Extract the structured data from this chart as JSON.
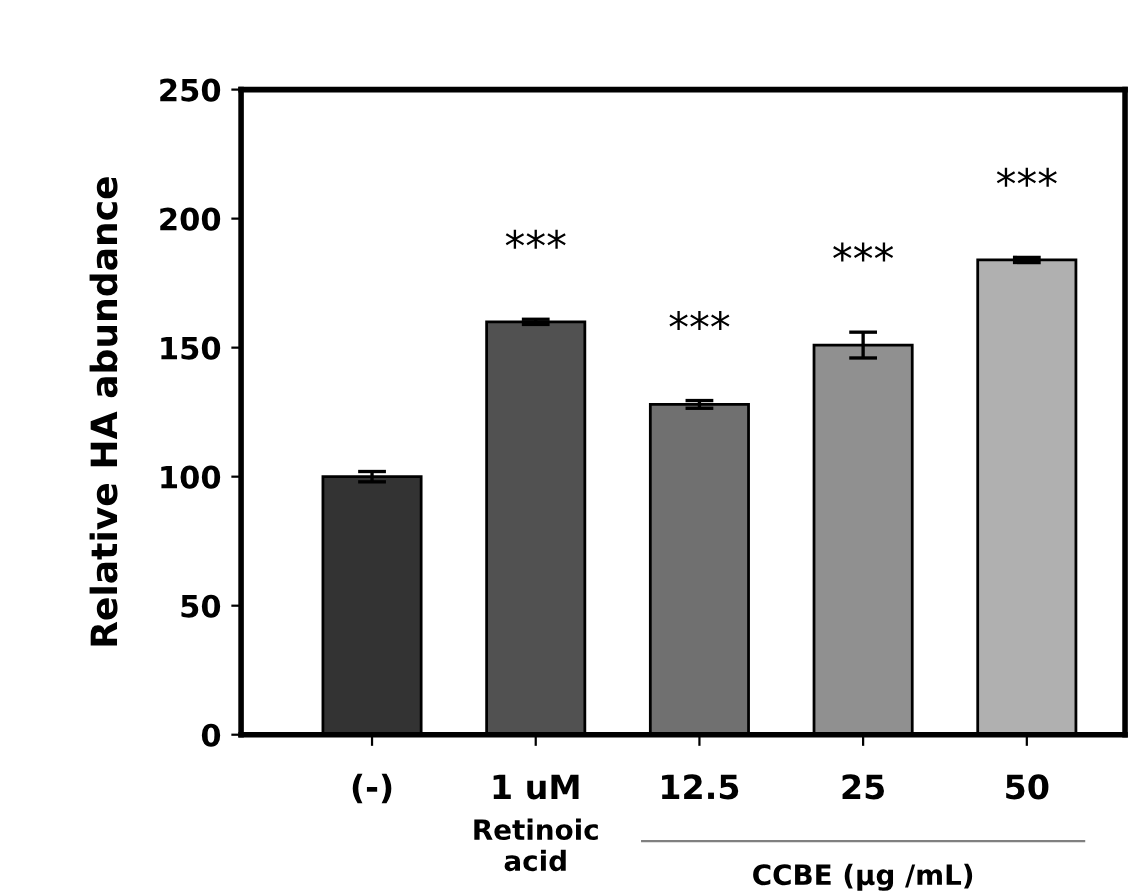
{
  "chart_data": {
    "type": "bar",
    "ylabel": "Relative HA abundance",
    "categories": [
      "(-)",
      "1 uM",
      "12.5",
      "25",
      "50"
    ],
    "values": [
      100,
      160,
      128,
      151,
      184
    ],
    "errors": [
      2,
      1,
      1.5,
      5,
      1
    ],
    "colors": [
      "#333333",
      "#515151",
      "#707070",
      "#909090",
      "#b0b0b0"
    ],
    "ylim": [
      0,
      250
    ],
    "yticks": [
      0,
      50,
      100,
      150,
      200,
      250
    ],
    "grid": false,
    "legend": false,
    "annotations": [
      "***",
      "***",
      "***",
      "***",
      "Retinoic\nacid",
      "CCBE (μg /mL)"
    ]
  }
}
